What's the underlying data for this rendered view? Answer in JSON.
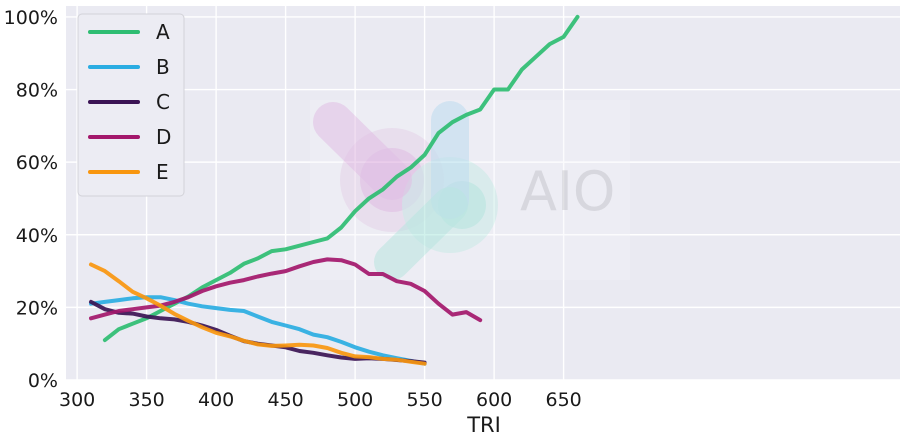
{
  "chart_data": {
    "type": "line",
    "xlabel": "TRI",
    "ylabel": "",
    "xlim": [
      292,
      892
    ],
    "ylim": [
      0,
      1.03
    ],
    "x_ticks": [
      300,
      350,
      400,
      450,
      500,
      550,
      600,
      650
    ],
    "x_tick_labels": [
      "300",
      "350",
      "400",
      "450",
      "500",
      "550",
      "600",
      "650"
    ],
    "y_ticks": [
      0,
      0.2,
      0.4,
      0.6,
      0.8,
      1.0
    ],
    "y_tick_labels": [
      "0%",
      "20%",
      "40%",
      "60%",
      "80%",
      "100%"
    ],
    "grid": true,
    "legend_position": "top-left",
    "watermark": "AIO",
    "series": [
      {
        "name": "A",
        "color": "#2ebd72",
        "points": [
          [
            320,
            0.11
          ],
          [
            330,
            0.14
          ],
          [
            340,
            0.155
          ],
          [
            350,
            0.17
          ],
          [
            360,
            0.19
          ],
          [
            370,
            0.21
          ],
          [
            380,
            0.23
          ],
          [
            390,
            0.255
          ],
          [
            400,
            0.275
          ],
          [
            410,
            0.295
          ],
          [
            420,
            0.32
          ],
          [
            430,
            0.335
          ],
          [
            440,
            0.355
          ],
          [
            450,
            0.36
          ],
          [
            460,
            0.37
          ],
          [
            470,
            0.38
          ],
          [
            480,
            0.39
          ],
          [
            490,
            0.42
          ],
          [
            500,
            0.465
          ],
          [
            510,
            0.5
          ],
          [
            520,
            0.525
          ],
          [
            530,
            0.56
          ],
          [
            540,
            0.585
          ],
          [
            550,
            0.62
          ],
          [
            560,
            0.68
          ],
          [
            570,
            0.71
          ],
          [
            580,
            0.73
          ],
          [
            590,
            0.745
          ],
          [
            600,
            0.8
          ],
          [
            610,
            0.8
          ],
          [
            620,
            0.855
          ],
          [
            630,
            0.89
          ],
          [
            640,
            0.925
          ],
          [
            650,
            0.945
          ],
          [
            660,
            1.0
          ]
        ]
      },
      {
        "name": "B",
        "color": "#2aace2",
        "points": [
          [
            310,
            0.21
          ],
          [
            320,
            0.215
          ],
          [
            330,
            0.22
          ],
          [
            340,
            0.225
          ],
          [
            350,
            0.228
          ],
          [
            360,
            0.228
          ],
          [
            370,
            0.22
          ],
          [
            380,
            0.21
          ],
          [
            390,
            0.203
          ],
          [
            400,
            0.198
          ],
          [
            410,
            0.193
          ],
          [
            420,
            0.19
          ],
          [
            430,
            0.175
          ],
          [
            440,
            0.16
          ],
          [
            450,
            0.15
          ],
          [
            460,
            0.14
          ],
          [
            470,
            0.125
          ],
          [
            480,
            0.118
          ],
          [
            490,
            0.105
          ],
          [
            500,
            0.09
          ],
          [
            510,
            0.078
          ],
          [
            520,
            0.068
          ],
          [
            530,
            0.06
          ],
          [
            540,
            0.053
          ],
          [
            550,
            0.045
          ]
        ]
      },
      {
        "name": "C",
        "color": "#3b1454",
        "points": [
          [
            310,
            0.215
          ],
          [
            320,
            0.195
          ],
          [
            330,
            0.185
          ],
          [
            340,
            0.183
          ],
          [
            350,
            0.175
          ],
          [
            360,
            0.17
          ],
          [
            370,
            0.167
          ],
          [
            380,
            0.16
          ],
          [
            390,
            0.15
          ],
          [
            400,
            0.138
          ],
          [
            410,
            0.122
          ],
          [
            420,
            0.107
          ],
          [
            430,
            0.1
          ],
          [
            440,
            0.095
          ],
          [
            450,
            0.09
          ],
          [
            460,
            0.08
          ],
          [
            470,
            0.075
          ],
          [
            480,
            0.068
          ],
          [
            490,
            0.062
          ],
          [
            500,
            0.058
          ],
          [
            510,
            0.06
          ],
          [
            520,
            0.058
          ],
          [
            530,
            0.055
          ],
          [
            540,
            0.052
          ],
          [
            550,
            0.048
          ]
        ]
      },
      {
        "name": "D",
        "color": "#a3176b",
        "points": [
          [
            310,
            0.17
          ],
          [
            320,
            0.18
          ],
          [
            330,
            0.19
          ],
          [
            340,
            0.195
          ],
          [
            350,
            0.2
          ],
          [
            360,
            0.205
          ],
          [
            370,
            0.215
          ],
          [
            380,
            0.228
          ],
          [
            390,
            0.245
          ],
          [
            400,
            0.258
          ],
          [
            410,
            0.268
          ],
          [
            420,
            0.275
          ],
          [
            430,
            0.285
          ],
          [
            440,
            0.293
          ],
          [
            450,
            0.3
          ],
          [
            460,
            0.313
          ],
          [
            470,
            0.325
          ],
          [
            480,
            0.332
          ],
          [
            490,
            0.33
          ],
          [
            500,
            0.318
          ],
          [
            510,
            0.292
          ],
          [
            520,
            0.292
          ],
          [
            530,
            0.272
          ],
          [
            540,
            0.265
          ],
          [
            550,
            0.245
          ],
          [
            560,
            0.21
          ],
          [
            570,
            0.18
          ],
          [
            580,
            0.187
          ],
          [
            590,
            0.165
          ]
        ]
      },
      {
        "name": "E",
        "color": "#f8960f",
        "points": [
          [
            310,
            0.318
          ],
          [
            320,
            0.3
          ],
          [
            330,
            0.272
          ],
          [
            340,
            0.243
          ],
          [
            350,
            0.225
          ],
          [
            360,
            0.205
          ],
          [
            370,
            0.182
          ],
          [
            380,
            0.163
          ],
          [
            390,
            0.145
          ],
          [
            400,
            0.13
          ],
          [
            410,
            0.12
          ],
          [
            420,
            0.108
          ],
          [
            430,
            0.098
          ],
          [
            440,
            0.094
          ],
          [
            450,
            0.095
          ],
          [
            460,
            0.097
          ],
          [
            470,
            0.095
          ],
          [
            480,
            0.088
          ],
          [
            490,
            0.075
          ],
          [
            500,
            0.065
          ],
          [
            510,
            0.063
          ],
          [
            520,
            0.058
          ],
          [
            530,
            0.056
          ],
          [
            540,
            0.05
          ],
          [
            550,
            0.045
          ]
        ]
      }
    ]
  }
}
